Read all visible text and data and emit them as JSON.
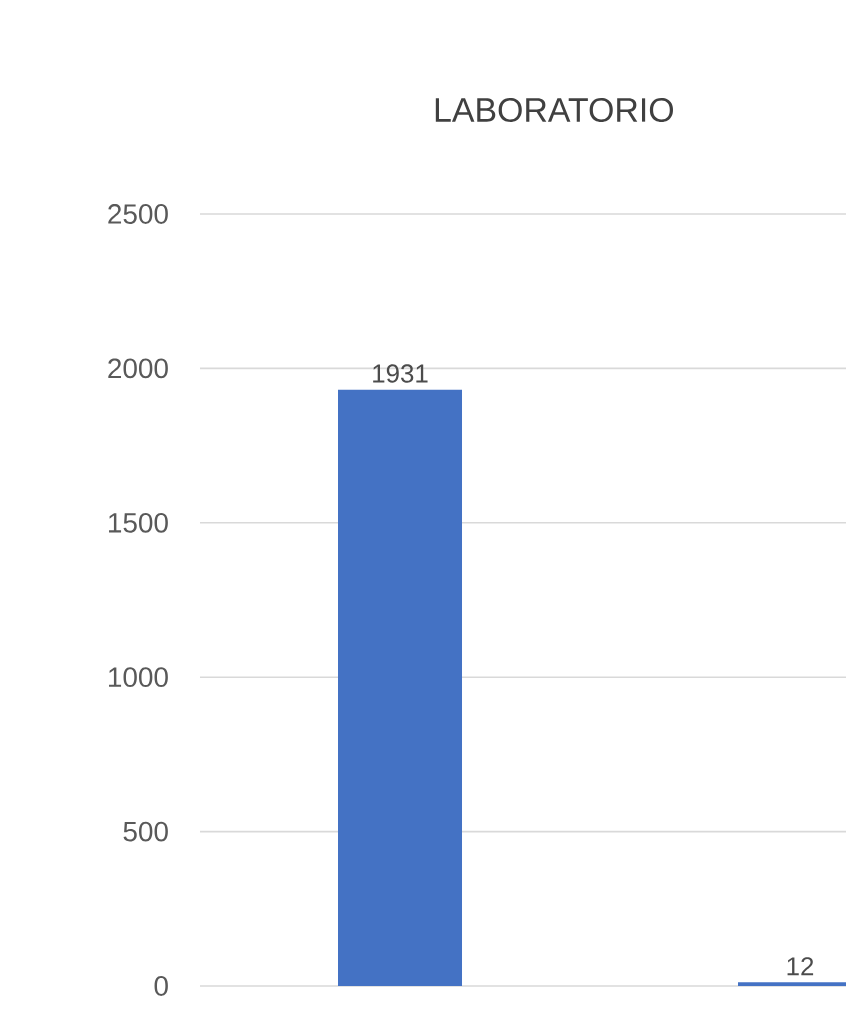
{
  "chart_data": {
    "type": "bar",
    "title": "LABORATORIO",
    "categories": [
      null,
      null
    ],
    "values": [
      1931,
      12
    ],
    "color": "#4472c4",
    "ylim": [
      0,
      2500
    ],
    "yticks": [
      0,
      500,
      1000,
      1500,
      2000,
      2500
    ],
    "grid": "y",
    "data_labels": true
  }
}
